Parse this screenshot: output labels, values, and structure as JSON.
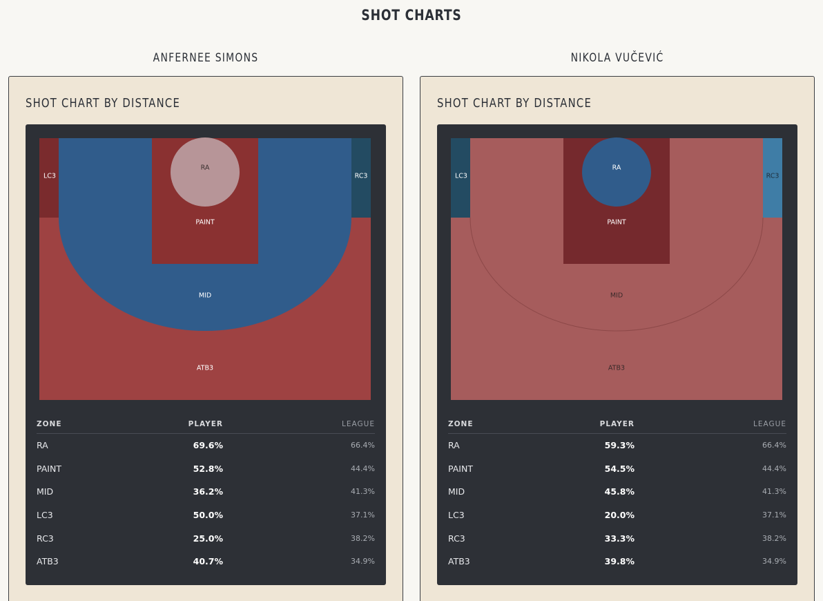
{
  "page": {
    "title": "SHOT CHARTS"
  },
  "colors": {
    "background": "#f8f7f3",
    "card": "#efe6d6",
    "panel": "#2d3036"
  },
  "players": [
    {
      "name": "ANFERNEE SIMONS",
      "card_title": "SHOT CHART BY DISTANCE",
      "zone_labels": {
        "RA": "RA",
        "PAINT": "PAINT",
        "MID": "MID",
        "LC3": "LC3",
        "RC3": "RC3",
        "ATB3": "ATB3"
      },
      "zone_colors": {
        "RA": "#b79598",
        "PAINT": "#8a3131",
        "MID": "#305c8b",
        "LC3": "#7a2b2d",
        "RC3": "#234b62",
        "ATB3": "#9e4242"
      },
      "zone_label_colors": {
        "RA": "#3a3030",
        "PAINT": "#ffffff",
        "MID": "#ffffff",
        "LC3": "#ffffff",
        "RC3": "#ffffff",
        "ATB3": "#ffffff"
      },
      "table": {
        "headers": {
          "zone": "ZONE",
          "player": "PLAYER",
          "league": "LEAGUE"
        },
        "rows": [
          {
            "zone": "RA",
            "player": "69.6%",
            "league": "66.4%"
          },
          {
            "zone": "PAINT",
            "player": "52.8%",
            "league": "44.4%"
          },
          {
            "zone": "MID",
            "player": "36.2%",
            "league": "41.3%"
          },
          {
            "zone": "LC3",
            "player": "50.0%",
            "league": "37.1%"
          },
          {
            "zone": "RC3",
            "player": "25.0%",
            "league": "38.2%"
          },
          {
            "zone": "ATB3",
            "player": "40.7%",
            "league": "34.9%"
          }
        ]
      }
    },
    {
      "name": "NIKOLA VUČEVIĆ",
      "card_title": "SHOT CHART BY DISTANCE",
      "zone_labels": {
        "RA": "RA",
        "PAINT": "PAINT",
        "MID": "MID",
        "LC3": "LC3",
        "RC3": "RC3",
        "ATB3": "ATB3"
      },
      "zone_colors": {
        "RA": "#305c8b",
        "PAINT": "#75292d",
        "MID": "#a65c5c",
        "LC3": "#234b62",
        "RC3": "#3f7da6",
        "ATB3": "#a65c5c"
      },
      "zone_label_colors": {
        "RA": "#ffffff",
        "PAINT": "#ffffff",
        "MID": "#3a2a2a",
        "LC3": "#ffffff",
        "RC3": "#1e2e3c",
        "ATB3": "#3a2a2a"
      },
      "table": {
        "headers": {
          "zone": "ZONE",
          "player": "PLAYER",
          "league": "LEAGUE"
        },
        "rows": [
          {
            "zone": "RA",
            "player": "59.3%",
            "league": "66.4%"
          },
          {
            "zone": "PAINT",
            "player": "54.5%",
            "league": "44.4%"
          },
          {
            "zone": "MID",
            "player": "45.8%",
            "league": "41.3%"
          },
          {
            "zone": "LC3",
            "player": "20.0%",
            "league": "37.1%"
          },
          {
            "zone": "RC3",
            "player": "33.3%",
            "league": "38.2%"
          },
          {
            "zone": "ATB3",
            "player": "39.8%",
            "league": "34.9%"
          }
        ]
      }
    }
  ]
}
